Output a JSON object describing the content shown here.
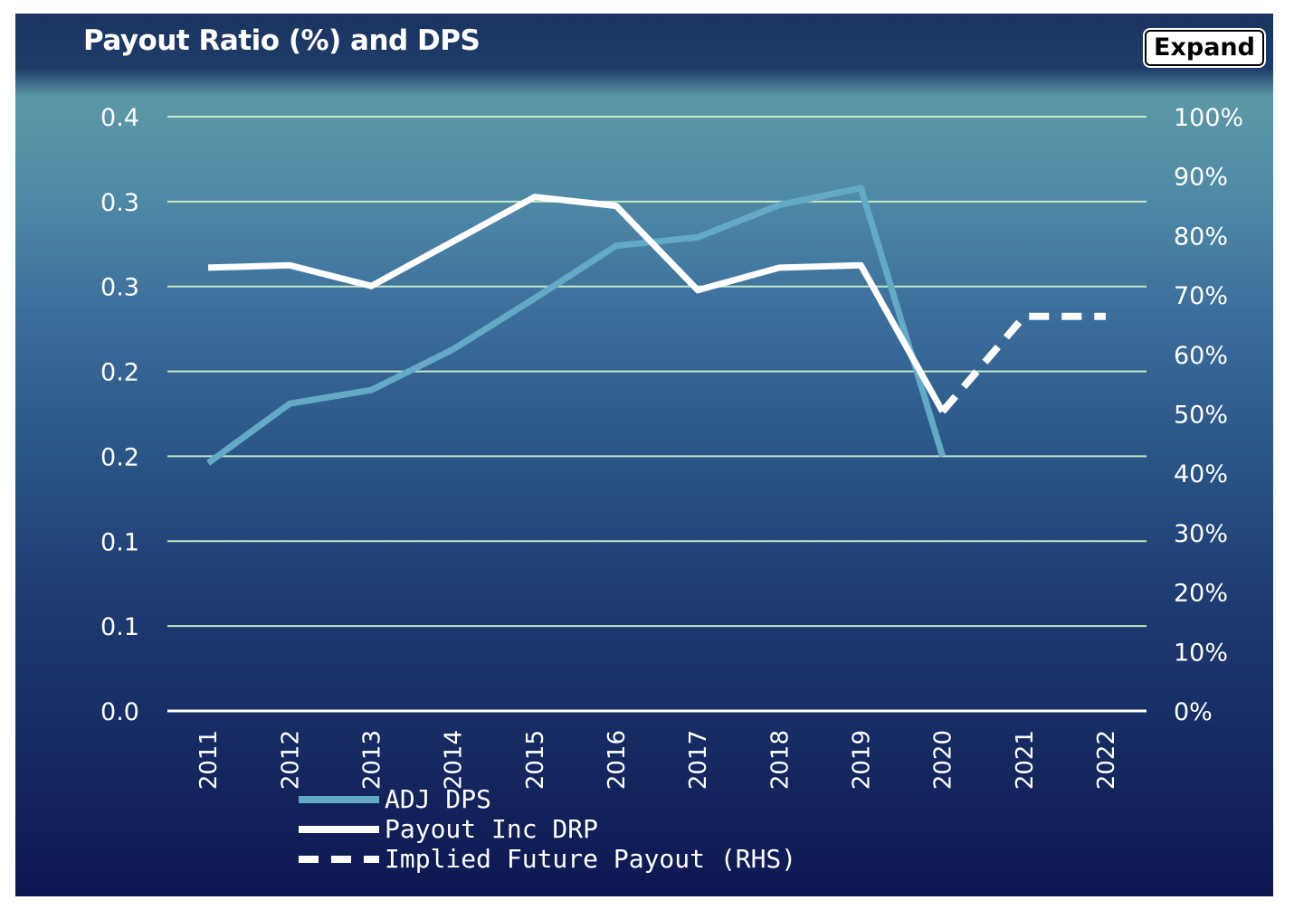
{
  "chart_data": {
    "type": "line",
    "title": "Payout Ratio (%) and DPS",
    "categories": [
      "2011",
      "2012",
      "2013",
      "2014",
      "2015",
      "2016",
      "2017",
      "2018",
      "2019",
      "2020",
      "2021",
      "2022"
    ],
    "y_left": {
      "ylim": [
        0,
        0.35
      ],
      "tick_values": [
        0,
        0.05,
        0.1,
        0.15,
        0.2,
        0.25,
        0.3,
        0.35
      ],
      "tick_labels": [
        "0.0",
        "0.1",
        "0.1",
        "0.2",
        "0.2",
        "0.3",
        "0.3",
        "0.4"
      ]
    },
    "y_right": {
      "ylim": [
        0,
        100
      ],
      "tick_values": [
        0,
        10,
        20,
        30,
        40,
        50,
        60,
        70,
        80,
        90,
        100
      ],
      "tick_labels": [
        "0%",
        "10%",
        "20%",
        "30%",
        "40%",
        "50%",
        "60%",
        "70%",
        "80%",
        "90%",
        "100%"
      ]
    },
    "series": [
      {
        "name": "ADJ DPS",
        "axis": "left",
        "color": "#64aac6",
        "style": "solid",
        "values": [
          0.146,
          0.181,
          0.189,
          0.213,
          0.243,
          0.274,
          0.279,
          0.298,
          0.308,
          0.15,
          null,
          null
        ]
      },
      {
        "name": "Payout Inc DRP",
        "axis": "right",
        "color": "#ffffff",
        "style": "solid",
        "values": [
          74.6,
          75.0,
          71.5,
          79.0,
          86.5,
          85.0,
          70.8,
          74.6,
          75.0,
          50.4,
          null,
          null
        ]
      },
      {
        "name": "Implied Future Payout (RHS)",
        "axis": "right",
        "color": "#ffffff",
        "style": "dashed",
        "values": [
          null,
          null,
          null,
          null,
          null,
          null,
          null,
          null,
          null,
          50.4,
          66.4,
          66.4
        ]
      }
    ],
    "legend_position": "bottom-left",
    "grid": true
  },
  "ui": {
    "expand_label": "Expand"
  }
}
